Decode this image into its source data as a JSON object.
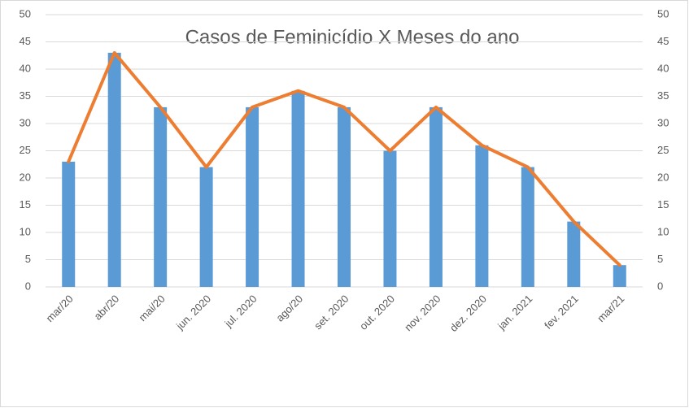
{
  "chart_data": {
    "type": "bar",
    "title": "Casos de Feminicídio X Meses do ano",
    "categories": [
      "mar/20",
      "abr/20",
      "mai/20",
      "jun. 2020",
      "jul. 2020",
      "ago/20",
      "set. 2020",
      "out. 2020",
      "nov. 2020",
      "dez. 2020",
      "jan. 2021",
      "fev. 2021",
      "mar/21"
    ],
    "series": [
      {
        "type": "bar",
        "color": "#5b9bd5",
        "values": [
          23,
          43,
          33,
          22,
          33,
          36,
          33,
          25,
          33,
          26,
          22,
          12,
          4
        ]
      },
      {
        "type": "line",
        "axis": "y2",
        "color": "#ed7d31",
        "values": [
          23,
          43,
          33,
          22,
          33,
          36,
          33,
          25,
          33,
          26,
          22,
          12,
          4
        ]
      }
    ],
    "ylim": [
      0,
      50
    ],
    "yticks": [
      0,
      5,
      10,
      15,
      20,
      25,
      30,
      35,
      40,
      45,
      50
    ],
    "y2lim": [
      0,
      50
    ],
    "y2ticks": [
      0,
      5,
      10,
      15,
      20,
      25,
      30,
      35,
      40,
      45,
      50
    ],
    "grid": true
  }
}
